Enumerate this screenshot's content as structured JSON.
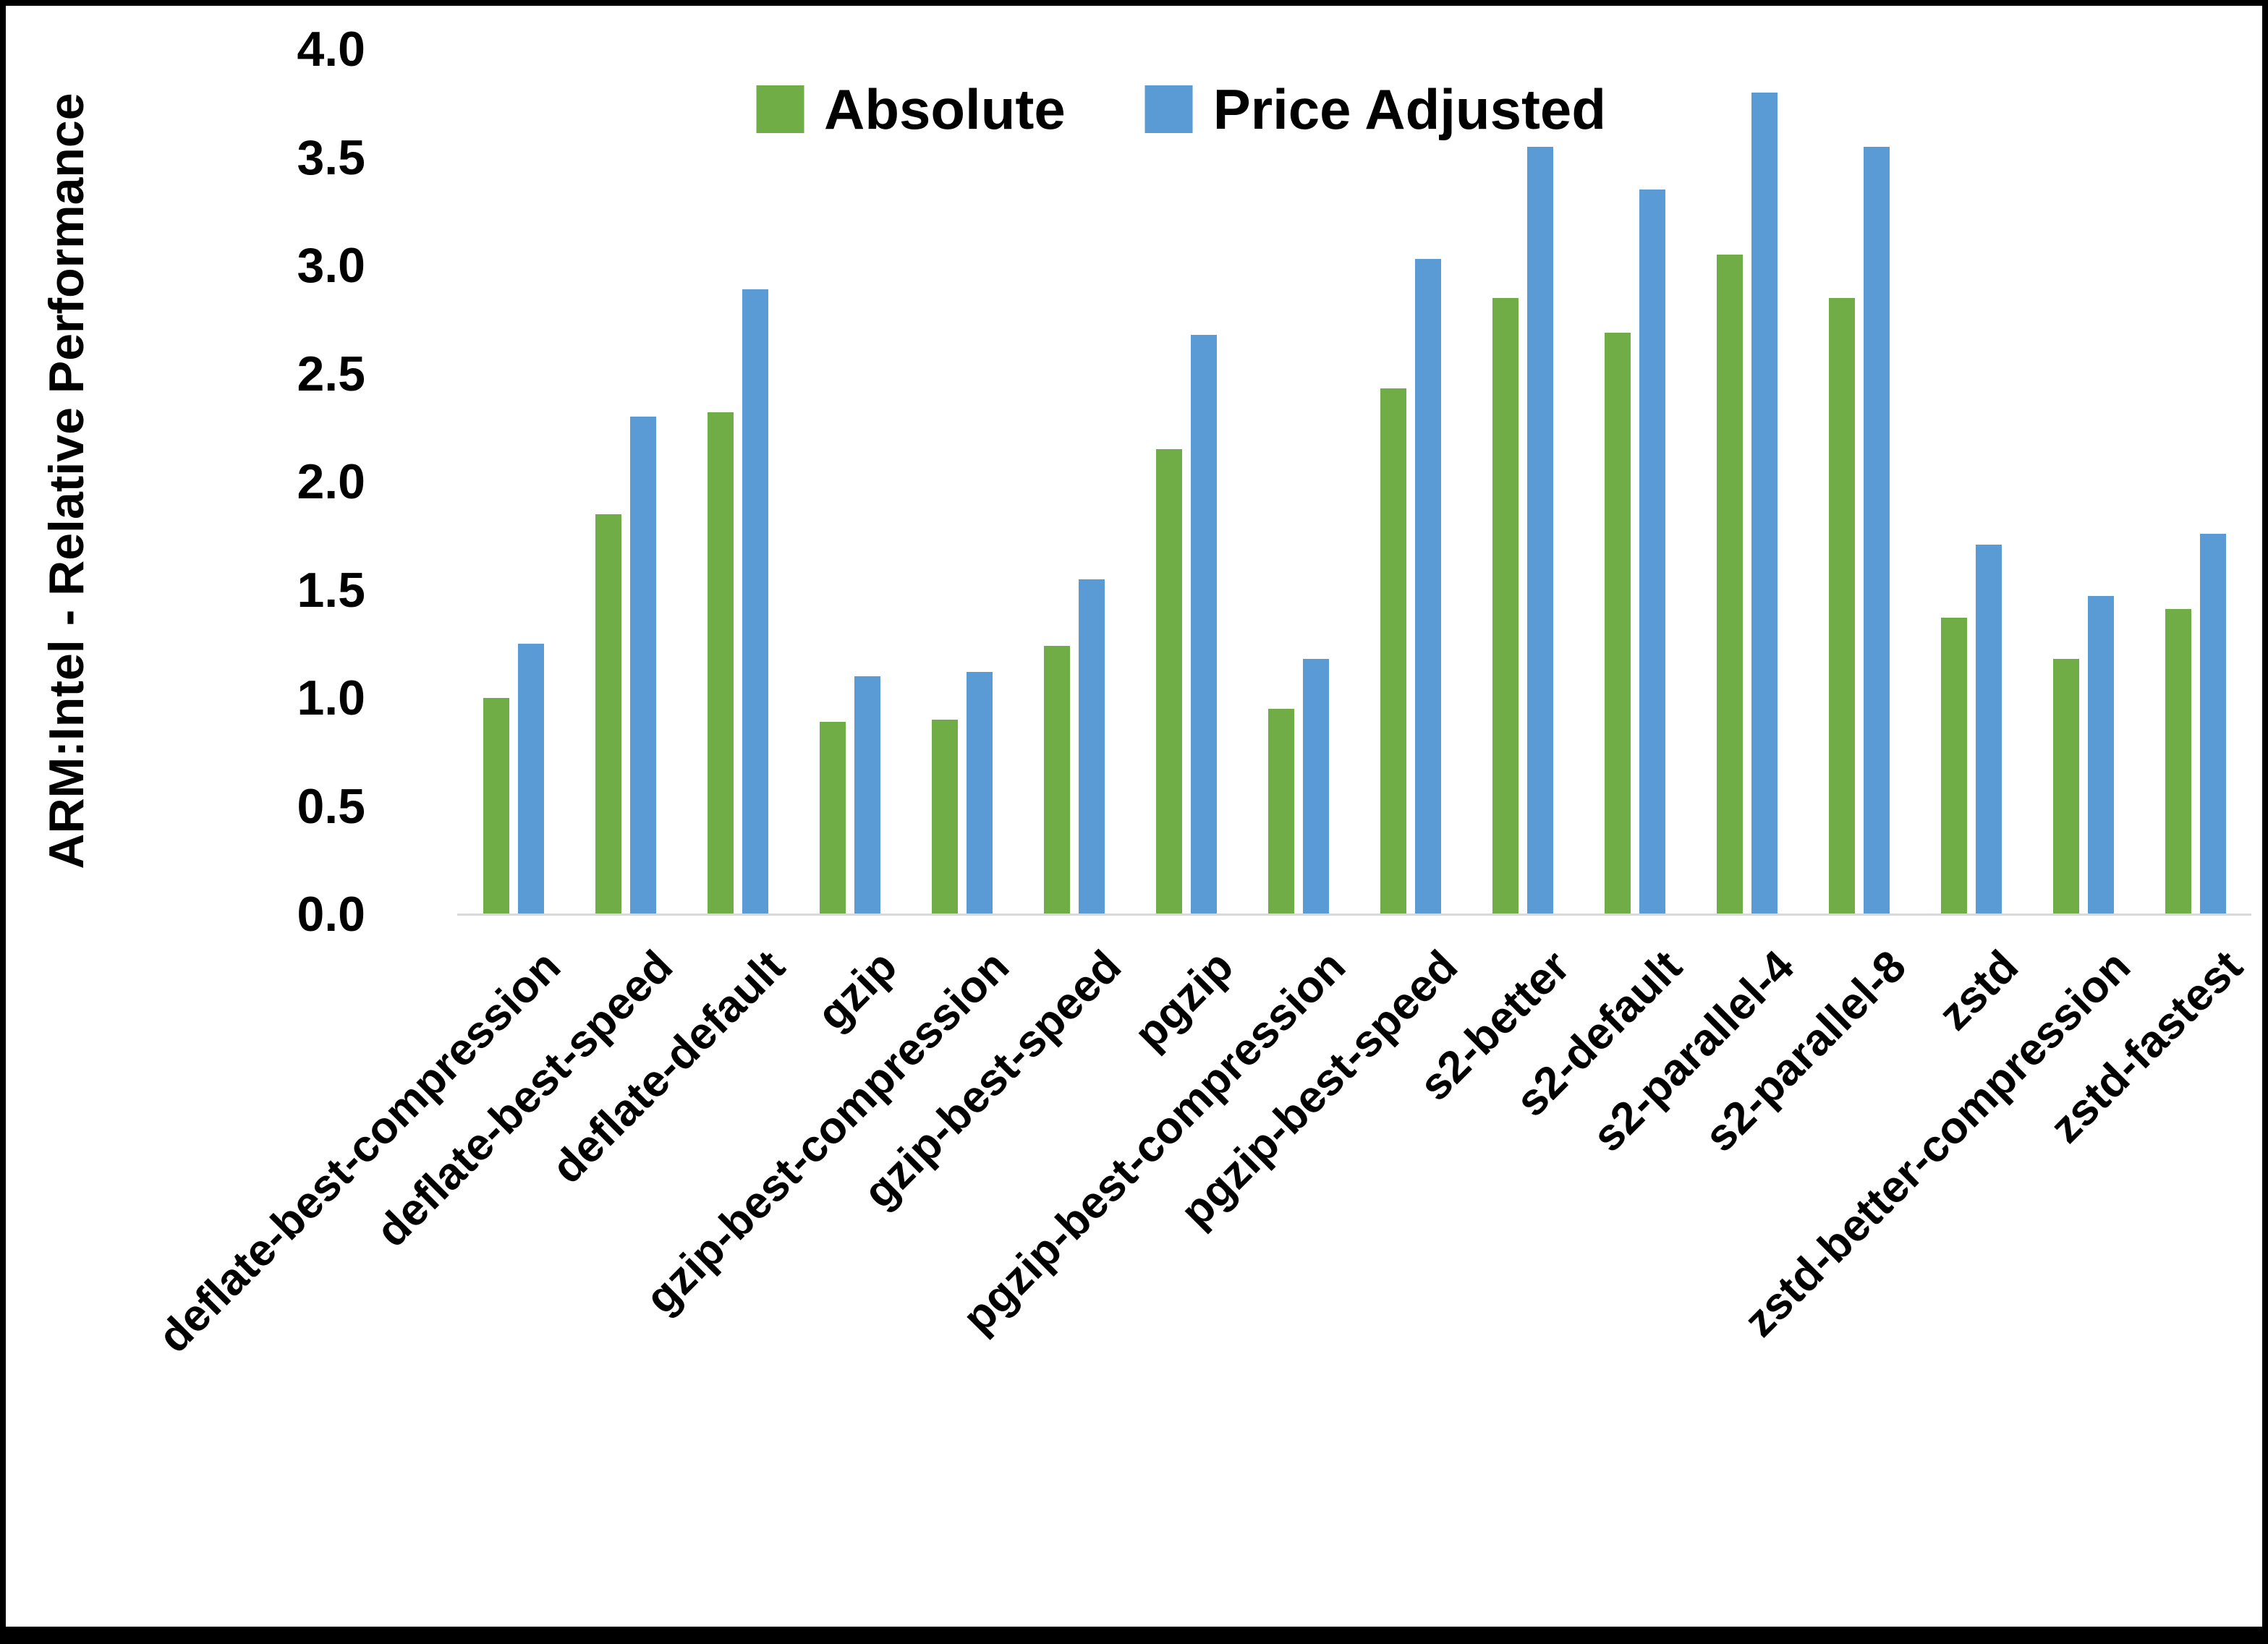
{
  "frame": {
    "border_color": "#000000",
    "background": "#ffffff"
  },
  "chart_data": {
    "type": "bar",
    "title": "",
    "xlabel": "",
    "ylabel": "ARM:Intel - Relative Performance",
    "ylim": [
      0.0,
      4.0
    ],
    "ytick_step": 0.5,
    "ytick_labels": [
      "0.0",
      "0.5",
      "1.0",
      "1.5",
      "2.0",
      "2.5",
      "3.0",
      "3.5",
      "4.0"
    ],
    "grid": false,
    "legend_position": "top-center",
    "axis_line_color": "#D9D9D9",
    "text_color": "#000000",
    "categories": [
      "deflate-best-compression",
      "deflate-best-speed",
      "deflate-default",
      "gzip",
      "gzip-best-compression",
      "gzip-best-speed",
      "pgzip",
      "pgzip-best-compression",
      "pgzip-best-speed",
      "s2-better",
      "s2-default",
      "s2-parallel-4",
      "s2-parallel-8",
      "zstd",
      "zstd-better-compression",
      "zstd-fastest"
    ],
    "series": [
      {
        "name": "Absolute",
        "color": "#70AD47",
        "values": [
          1.0,
          1.85,
          2.32,
          0.89,
          0.9,
          1.24,
          2.15,
          0.95,
          2.43,
          2.85,
          2.69,
          3.05,
          2.85,
          1.37,
          1.18,
          1.41
        ]
      },
      {
        "name": "Price Adjusted",
        "color": "#5B9BD5",
        "values": [
          1.25,
          2.3,
          2.89,
          1.1,
          1.12,
          1.55,
          2.68,
          1.18,
          3.03,
          3.55,
          3.35,
          3.8,
          3.55,
          1.71,
          1.47,
          1.76
        ]
      }
    ]
  }
}
